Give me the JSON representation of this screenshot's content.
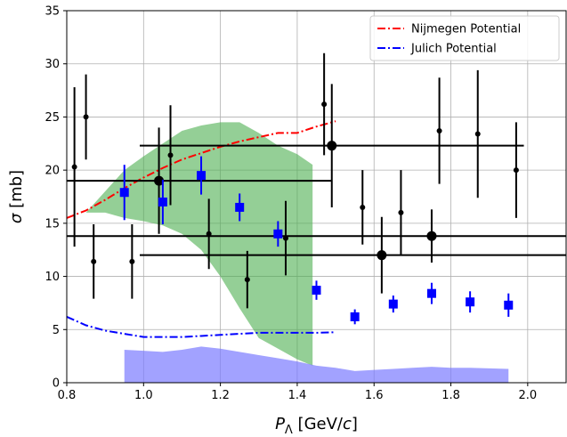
{
  "chart_data": {
    "type": "scatter",
    "title": "",
    "xlabel_main": "P",
    "xlabel_sub": "Λ",
    "xlabel_unit_pre": " [GeV/",
    "xlabel_unit_italic": "c",
    "xlabel_unit_post": "]",
    "ylabel_symbol": "σ",
    "ylabel_unit": " [mb]",
    "xlim": [
      0.8,
      2.1
    ],
    "ylim": [
      0,
      35
    ],
    "xticks": [
      0.8,
      1.0,
      1.2,
      1.4,
      1.6,
      1.8,
      2.0
    ],
    "xtick_labels": [
      "0.8",
      "1.0",
      "1.2",
      "1.4",
      "1.6",
      "1.8",
      "2.0"
    ],
    "yticks": [
      0,
      5,
      10,
      15,
      20,
      25,
      30,
      35
    ],
    "ytick_labels": [
      "0",
      "5",
      "10",
      "15",
      "20",
      "25",
      "30",
      "35"
    ],
    "grid": true,
    "legend_position": "top-right",
    "colors": {
      "nijmegen": "#ff0000",
      "julich": "#0000ff",
      "green_band": "#4caf50",
      "blue_band": "#7b7bff",
      "data_small": "#000000",
      "data_big": "#000000",
      "data_blue": "#0000ff"
    },
    "series": [
      {
        "name": "Nijmegen Potential",
        "kind": "line",
        "style": "dashdot",
        "color": "#ff0000",
        "points": [
          [
            0.8,
            15.5
          ],
          [
            0.85,
            16.2
          ],
          [
            0.9,
            17.2
          ],
          [
            0.95,
            18.3
          ],
          [
            1.0,
            19.3
          ],
          [
            1.05,
            20.2
          ],
          [
            1.1,
            21.0
          ],
          [
            1.15,
            21.6
          ],
          [
            1.2,
            22.2
          ],
          [
            1.25,
            22.7
          ],
          [
            1.3,
            23.1
          ],
          [
            1.35,
            23.5
          ],
          [
            1.4,
            23.5
          ],
          [
            1.45,
            24.1
          ],
          [
            1.5,
            24.6
          ]
        ]
      },
      {
        "name": "Julich Potential",
        "kind": "line",
        "style": "dashdot",
        "color": "#0000ff",
        "points": [
          [
            0.8,
            6.2
          ],
          [
            0.85,
            5.4
          ],
          [
            0.9,
            4.9
          ],
          [
            0.95,
            4.6
          ],
          [
            1.0,
            4.3
          ],
          [
            1.05,
            4.3
          ],
          [
            1.1,
            4.3
          ],
          [
            1.15,
            4.4
          ],
          [
            1.2,
            4.5
          ],
          [
            1.25,
            4.6
          ],
          [
            1.3,
            4.7
          ],
          [
            1.35,
            4.7
          ],
          [
            1.4,
            4.7
          ],
          [
            1.45,
            4.7
          ],
          [
            1.5,
            4.75
          ]
        ]
      }
    ],
    "bands": [
      {
        "kind": "green-band",
        "color": "#4caf50",
        "upper": [
          [
            0.8,
            14.0
          ],
          [
            0.9,
            18.0
          ],
          [
            0.95,
            20.0
          ],
          [
            1.0,
            21.3
          ],
          [
            1.05,
            22.5
          ],
          [
            1.1,
            23.7
          ],
          [
            1.15,
            24.2
          ],
          [
            1.2,
            24.5
          ],
          [
            1.25,
            24.5
          ],
          [
            1.3,
            23.5
          ],
          [
            1.35,
            22.3
          ],
          [
            1.4,
            21.5
          ],
          [
            1.44,
            20.5
          ]
        ],
        "lower": [
          [
            0.8,
            14.0
          ],
          [
            0.85,
            16.0
          ],
          [
            0.9,
            16.0
          ],
          [
            0.95,
            15.5
          ],
          [
            1.0,
            15.2
          ],
          [
            1.05,
            14.8
          ],
          [
            1.1,
            14.0
          ],
          [
            1.15,
            12.5
          ],
          [
            1.2,
            10.0
          ],
          [
            1.25,
            7.0
          ],
          [
            1.3,
            4.2
          ],
          [
            1.35,
            3.2
          ],
          [
            1.4,
            2.2
          ],
          [
            1.44,
            1.6
          ]
        ]
      },
      {
        "kind": "blue-band",
        "color": "#7b7bff",
        "upper": [
          [
            0.95,
            3.1
          ],
          [
            1.0,
            3.0
          ],
          [
            1.05,
            2.9
          ],
          [
            1.1,
            3.1
          ],
          [
            1.15,
            3.4
          ],
          [
            1.2,
            3.2
          ],
          [
            1.25,
            2.9
          ],
          [
            1.3,
            2.6
          ],
          [
            1.35,
            2.3
          ],
          [
            1.4,
            2.0
          ],
          [
            1.45,
            1.6
          ],
          [
            1.5,
            1.4
          ],
          [
            1.55,
            1.1
          ],
          [
            1.6,
            1.2
          ],
          [
            1.65,
            1.3
          ],
          [
            1.7,
            1.4
          ],
          [
            1.75,
            1.5
          ],
          [
            1.8,
            1.4
          ],
          [
            1.85,
            1.4
          ],
          [
            1.9,
            1.35
          ],
          [
            1.95,
            1.3
          ]
        ],
        "lower_value": 0
      }
    ],
    "data_small": [
      {
        "x": 0.82,
        "y": 20.3,
        "yerr_low": 7.5,
        "yerr_high": 7.5
      },
      {
        "x": 0.85,
        "y": 25.0,
        "yerr_low": 4.0,
        "yerr_high": 4.0
      },
      {
        "x": 0.87,
        "y": 11.4,
        "yerr_low": 3.5,
        "yerr_high": 3.5
      },
      {
        "x": 0.97,
        "y": 11.4,
        "yerr_low": 3.5,
        "yerr_high": 3.5
      },
      {
        "x": 1.07,
        "y": 21.4,
        "yerr_low": 4.7,
        "yerr_high": 4.7
      },
      {
        "x": 1.17,
        "y": 14.0,
        "yerr_low": 3.3,
        "yerr_high": 3.3
      },
      {
        "x": 1.27,
        "y": 9.7,
        "yerr_low": 2.7,
        "yerr_high": 2.7
      },
      {
        "x": 1.37,
        "y": 13.6,
        "yerr_low": 3.5,
        "yerr_high": 3.5
      },
      {
        "x": 1.47,
        "y": 26.2,
        "yerr_low": 4.8,
        "yerr_high": 4.8
      },
      {
        "x": 1.57,
        "y": 16.5,
        "yerr_low": 3.5,
        "yerr_high": 3.5
      },
      {
        "x": 1.67,
        "y": 16.0,
        "yerr_low": 4.0,
        "yerr_high": 4.0
      },
      {
        "x": 1.77,
        "y": 23.7,
        "yerr_low": 5.0,
        "yerr_high": 5.0
      },
      {
        "x": 1.87,
        "y": 23.4,
        "yerr_low": 6.0,
        "yerr_high": 6.0
      },
      {
        "x": 1.97,
        "y": 20.0,
        "yerr_low": 4.5,
        "yerr_high": 4.5
      }
    ],
    "data_big": [
      {
        "x": 1.04,
        "y": 19.0,
        "xerr_low": 0.24,
        "xerr_high": 0.45,
        "yerr_low": 5.0,
        "yerr_high": 5.0
      },
      {
        "x": 1.49,
        "y": 22.3,
        "xerr_low": 0.5,
        "xerr_high": 0.5,
        "yerr_low": 5.8,
        "yerr_high": 5.8
      },
      {
        "x": 1.62,
        "y": 12.0,
        "xerr_low": 0.63,
        "xerr_high": 0.48,
        "yerr_low": 3.6,
        "yerr_high": 3.6
      },
      {
        "x": 1.75,
        "y": 13.8,
        "xerr_low": 0.95,
        "xerr_high": 0.35,
        "yerr_low": 2.5,
        "yerr_high": 2.5
      }
    ],
    "data_blue": [
      {
        "x": 0.95,
        "y": 17.9,
        "yerr_low": 2.6,
        "yerr_high": 2.6
      },
      {
        "x": 1.05,
        "y": 17.0,
        "yerr_low": 2.1,
        "yerr_high": 2.1
      },
      {
        "x": 1.15,
        "y": 19.5,
        "yerr_low": 1.8,
        "yerr_high": 1.8
      },
      {
        "x": 1.25,
        "y": 16.5,
        "yerr_low": 1.3,
        "yerr_high": 1.3
      },
      {
        "x": 1.35,
        "y": 14.0,
        "yerr_low": 1.2,
        "yerr_high": 1.2
      },
      {
        "x": 1.45,
        "y": 8.7,
        "yerr_low": 0.9,
        "yerr_high": 0.9
      },
      {
        "x": 1.55,
        "y": 6.2,
        "yerr_low": 0.7,
        "yerr_high": 0.7
      },
      {
        "x": 1.65,
        "y": 7.4,
        "yerr_low": 0.8,
        "yerr_high": 0.8
      },
      {
        "x": 1.75,
        "y": 8.4,
        "yerr_low": 1.0,
        "yerr_high": 1.0
      },
      {
        "x": 1.85,
        "y": 7.6,
        "yerr_low": 1.0,
        "yerr_high": 1.0
      },
      {
        "x": 1.95,
        "y": 7.3,
        "yerr_low": 1.1,
        "yerr_high": 1.1
      }
    ]
  }
}
